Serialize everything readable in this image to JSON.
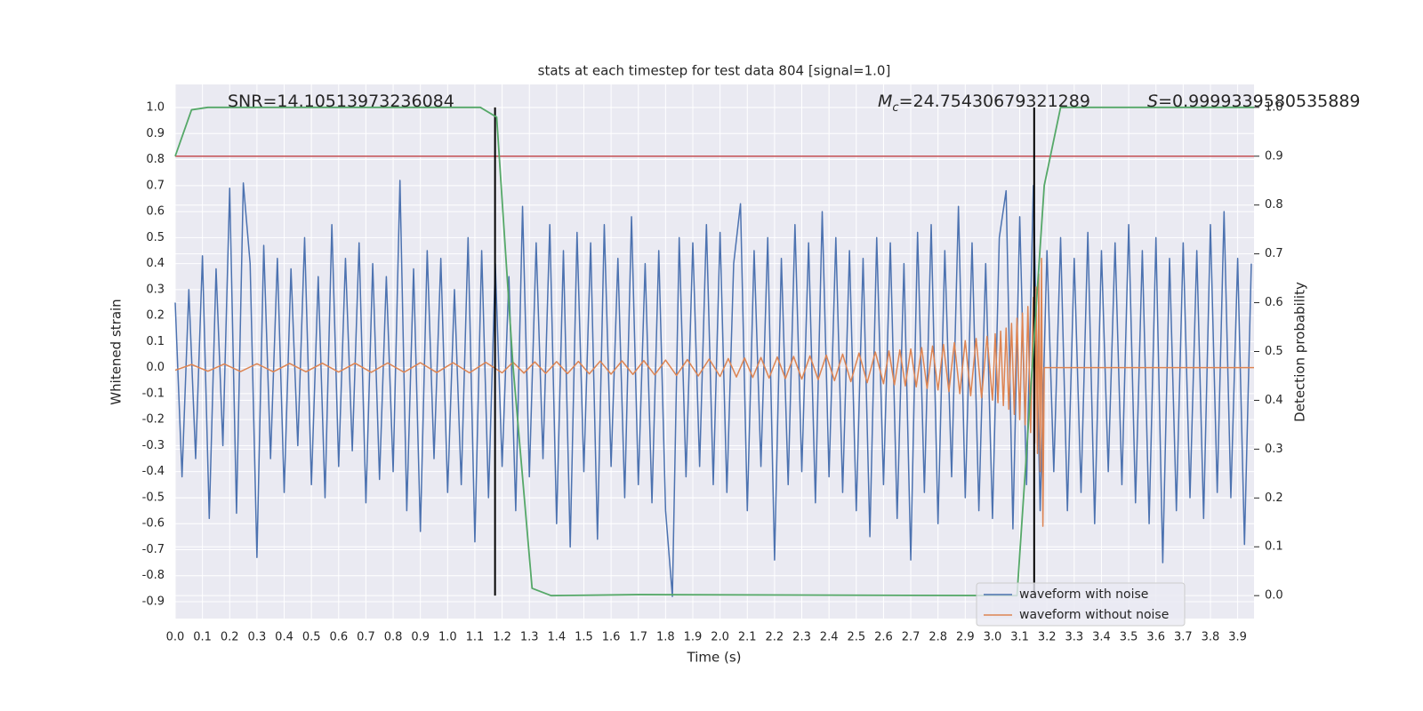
{
  "chart_data": {
    "type": "line",
    "title": "stats at each timestep for test data 804 [signal=1.0]",
    "xlabel": "Time (s)",
    "ylabel": "Whitened strain",
    "y2label": "Detection probability",
    "xlim": [
      0,
      3.96
    ],
    "ylim": [
      -0.965,
      1.089
    ],
    "y2lim": [
      -0.047,
      1.047
    ],
    "xticks": [
      {
        "value": 0,
        "label": "0.0"
      },
      0.1,
      0.2,
      0.3,
      0.4,
      0.5,
      0.6,
      0.7,
      0.8,
      0.9,
      {
        "value": 1,
        "label": "1.0"
      },
      1.1,
      1.2,
      1.3,
      1.4,
      1.5,
      1.6,
      1.7,
      1.8,
      1.9,
      {
        "value": 2,
        "label": "2.0"
      },
      2.1,
      2.2,
      2.3,
      2.4,
      2.5,
      2.6,
      2.7,
      2.8,
      2.9,
      {
        "value": 3,
        "label": "3.0"
      },
      3.1,
      3.2,
      3.3,
      3.4,
      3.5,
      3.6,
      3.7,
      3.8,
      3.9
    ],
    "yticks": [
      -0.9,
      -0.8,
      -0.7,
      -0.6,
      -0.5,
      -0.4,
      -0.3,
      -0.2,
      -0.1,
      {
        "value": 0,
        "label": "0.0"
      },
      0.1,
      0.2,
      0.3,
      0.4,
      0.5,
      0.6,
      0.7,
      0.8,
      0.9,
      {
        "value": 1,
        "label": "1.0"
      }
    ],
    "y2ticks": [
      {
        "value": 0,
        "label": "0.0"
      },
      0.1,
      0.2,
      0.3,
      0.4,
      0.5,
      0.6,
      0.7,
      0.8,
      0.9,
      {
        "value": 1,
        "label": "1.0"
      }
    ],
    "grid": true,
    "legend": "lower right",
    "annotations": [
      {
        "text": "SNR=14.10513973236084"
      },
      {
        "symbol": "M",
        "subscript": "c",
        "text": "=24.75430679321289"
      },
      {
        "symbol": "S",
        "text": "=0.9999339580535889"
      }
    ],
    "series": [
      {
        "name": "waveform with noise",
        "color": "#4c72b0",
        "x": [
          0,
          0.025,
          0.05,
          0.075,
          0.1,
          0.125,
          0.15,
          0.175,
          0.2,
          0.225,
          0.25,
          0.275,
          0.3,
          0.325,
          0.35,
          0.375,
          0.4,
          0.425,
          0.45,
          0.475,
          0.5,
          0.525,
          0.55,
          0.575,
          0.6,
          0.625,
          0.65,
          0.675,
          0.7,
          0.725,
          0.75,
          0.775,
          0.8,
          0.825,
          0.85,
          0.875,
          0.9,
          0.925,
          0.95,
          0.975,
          1,
          1.025,
          1.05,
          1.075,
          1.1,
          1.125,
          1.15,
          1.175,
          1.2,
          1.225,
          1.25,
          1.275,
          1.3,
          1.325,
          1.35,
          1.375,
          1.4,
          1.425,
          1.45,
          1.475,
          1.5,
          1.525,
          1.55,
          1.575,
          1.6,
          1.625,
          1.65,
          1.675,
          1.7,
          1.725,
          1.75,
          1.775,
          1.8,
          1.825,
          1.85,
          1.875,
          1.9,
          1.925,
          1.95,
          1.975,
          2,
          2.025,
          2.05,
          2.075,
          2.1,
          2.125,
          2.15,
          2.175,
          2.2,
          2.225,
          2.25,
          2.275,
          2.3,
          2.325,
          2.35,
          2.375,
          2.4,
          2.425,
          2.45,
          2.475,
          2.5,
          2.525,
          2.55,
          2.575,
          2.6,
          2.625,
          2.65,
          2.675,
          2.7,
          2.725,
          2.75,
          2.775,
          2.8,
          2.825,
          2.85,
          2.875,
          2.9,
          2.925,
          2.95,
          2.975,
          3,
          3.025,
          3.05,
          3.075,
          3.1,
          3.125,
          3.15,
          3.175,
          3.2,
          3.225,
          3.25,
          3.275,
          3.3,
          3.325,
          3.35,
          3.375,
          3.4,
          3.425,
          3.45,
          3.475,
          3.5,
          3.525,
          3.55,
          3.575,
          3.6,
          3.625,
          3.65,
          3.675,
          3.7,
          3.725,
          3.75,
          3.775,
          3.8,
          3.825,
          3.85,
          3.875,
          3.9,
          3.925,
          3.95
        ],
        "values": [
          0.25,
          -0.42,
          0.3,
          -0.35,
          0.43,
          -0.58,
          0.38,
          -0.3,
          0.69,
          -0.56,
          0.71,
          0.4,
          -0.73,
          0.47,
          -0.35,
          0.42,
          -0.48,
          0.38,
          -0.3,
          0.5,
          -0.45,
          0.35,
          -0.5,
          0.55,
          -0.38,
          0.42,
          -0.32,
          0.48,
          -0.52,
          0.4,
          -0.43,
          0.35,
          -0.4,
          0.72,
          -0.55,
          0.38,
          -0.63,
          0.45,
          -0.35,
          0.42,
          -0.48,
          0.3,
          -0.45,
          0.5,
          -0.67,
          0.45,
          -0.5,
          0.4,
          -0.38,
          0.35,
          -0.55,
          0.62,
          -0.42,
          0.48,
          -0.35,
          0.55,
          -0.6,
          0.45,
          -0.69,
          0.52,
          -0.4,
          0.48,
          -0.66,
          0.55,
          -0.38,
          0.42,
          -0.5,
          0.58,
          -0.45,
          0.4,
          -0.52,
          0.45,
          -0.55,
          -0.88,
          0.5,
          -0.42,
          0.48,
          -0.38,
          0.55,
          -0.45,
          0.52,
          -0.48,
          0.4,
          0.63,
          -0.55,
          0.45,
          -0.38,
          0.5,
          -0.74,
          0.42,
          -0.45,
          0.55,
          -0.4,
          0.48,
          -0.52,
          0.6,
          -0.42,
          0.5,
          -0.48,
          0.45,
          -0.55,
          0.42,
          -0.65,
          0.5,
          -0.45,
          0.48,
          -0.58,
          0.4,
          -0.74,
          0.52,
          -0.48,
          0.55,
          -0.6,
          0.45,
          -0.42,
          0.62,
          -0.5,
          0.48,
          -0.55,
          0.4,
          -0.58,
          0.5,
          0.68,
          -0.62,
          0.58,
          -0.45,
          0.7,
          -0.55,
          0.45,
          -0.4,
          0.5,
          -0.55,
          0.42,
          -0.48,
          0.52,
          -0.6,
          0.45,
          -0.4,
          0.48,
          -0.45,
          0.55,
          -0.52,
          0.45,
          -0.6,
          0.5,
          -0.75,
          0.42,
          -0.55,
          0.48,
          -0.5,
          0.45,
          -0.58,
          0.55,
          -0.48,
          0.6,
          -0.5,
          0.42,
          -0.68,
          0.4
        ]
      },
      {
        "name": "waveform without noise",
        "color": "#dd8452",
        "x": [
          0,
          0.06,
          0.12,
          0.18,
          0.24,
          0.3,
          0.36,
          0.42,
          0.48,
          0.54,
          0.6,
          0.66,
          0.72,
          0.78,
          0.84,
          0.9,
          0.96,
          1.02,
          1.08,
          1.14,
          1.2,
          1.24,
          1.28,
          1.32,
          1.36,
          1.4,
          1.44,
          1.48,
          1.52,
          1.56,
          1.6,
          1.64,
          1.68,
          1.72,
          1.76,
          1.8,
          1.84,
          1.88,
          1.92,
          1.96,
          2,
          2.03,
          2.06,
          2.09,
          2.12,
          2.15,
          2.18,
          2.21,
          2.24,
          2.27,
          2.3,
          2.33,
          2.36,
          2.39,
          2.42,
          2.45,
          2.48,
          2.51,
          2.54,
          2.57,
          2.6,
          2.62,
          2.64,
          2.66,
          2.68,
          2.7,
          2.72,
          2.74,
          2.76,
          2.78,
          2.8,
          2.82,
          2.84,
          2.86,
          2.88,
          2.9,
          2.92,
          2.94,
          2.96,
          2.98,
          3,
          3.01,
          3.02,
          3.03,
          3.04,
          3.05,
          3.06,
          3.07,
          3.08,
          3.09,
          3.1,
          3.11,
          3.12,
          3.13,
          3.14,
          3.15,
          3.155,
          3.16,
          3.165,
          3.17,
          3.175,
          3.18,
          3.185,
          3.19,
          3.96
        ],
        "values": [
          -0.01,
          0.012,
          -0.014,
          0.014,
          -0.015,
          0.015,
          -0.016,
          0.016,
          -0.016,
          0.017,
          -0.017,
          0.017,
          -0.018,
          0.018,
          -0.018,
          0.019,
          -0.019,
          0.019,
          -0.02,
          0.02,
          -0.02,
          0.021,
          -0.021,
          0.022,
          -0.022,
          0.023,
          -0.023,
          0.024,
          -0.024,
          0.025,
          -0.025,
          0.026,
          -0.026,
          0.027,
          -0.028,
          0.029,
          -0.03,
          0.031,
          -0.032,
          0.033,
          -0.034,
          0.035,
          -0.036,
          0.037,
          -0.038,
          0.039,
          -0.04,
          0.041,
          -0.042,
          0.043,
          -0.044,
          0.045,
          -0.046,
          0.048,
          -0.05,
          0.052,
          -0.054,
          0.056,
          -0.058,
          0.06,
          -0.062,
          0.064,
          -0.066,
          0.068,
          -0.07,
          0.072,
          -0.074,
          0.077,
          -0.08,
          0.083,
          -0.086,
          0.089,
          -0.092,
          0.096,
          -0.1,
          0.104,
          -0.108,
          0.112,
          -0.116,
          0.12,
          -0.125,
          0.13,
          -0.135,
          0.14,
          -0.146,
          0.152,
          -0.16,
          0.17,
          -0.18,
          0.19,
          -0.2,
          0.21,
          -0.22,
          0.235,
          -0.25,
          0.27,
          -0.29,
          0.31,
          -0.33,
          0.36,
          -0.4,
          0.42,
          -0.61,
          0,
          0
        ]
      }
    ],
    "probability": {
      "color": "#55a868",
      "axis": "y2",
      "x": [
        0,
        0.06,
        0.12,
        1.12,
        1.18,
        1.24,
        1.31,
        1.38,
        1.7,
        3.09,
        3.19,
        3.25,
        3.96
      ],
      "values": [
        0.9,
        0.995,
        1,
        1,
        0.98,
        0.47,
        0.015,
        0,
        0.002,
        0,
        0.84,
        1,
        1
      ]
    },
    "threshold": {
      "value": 0.9,
      "axis": "y2",
      "color": "#c44e52"
    },
    "vlines": {
      "x": [
        1.174,
        3.153
      ],
      "range": [
        0,
        1
      ],
      "axis": "y2",
      "color": "#000000"
    }
  }
}
